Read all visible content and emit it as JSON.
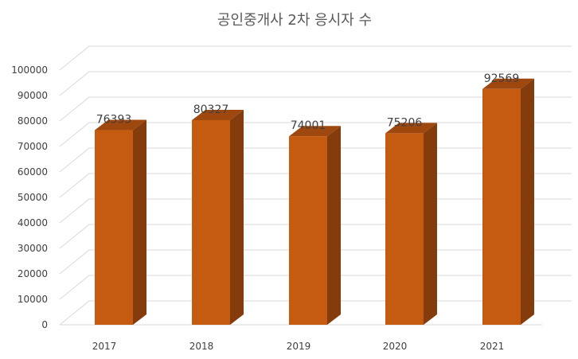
{
  "chart_data": {
    "type": "bar",
    "title": "공인중개사 2차 응시자 수",
    "categories": [
      "2017",
      "2018",
      "2019",
      "2020",
      "2021"
    ],
    "values": [
      76393,
      80327,
      74001,
      75206,
      92569
    ],
    "ylim": [
      0,
      100000
    ],
    "yticks": [
      0,
      10000,
      20000,
      30000,
      40000,
      50000,
      60000,
      70000,
      80000,
      90000,
      100000
    ],
    "xlabel": "",
    "ylabel": "",
    "grid": true,
    "legend": "none",
    "style": "3d-column",
    "colors": {
      "front": "#C55A11",
      "side": "#843C0C",
      "top": "#9E470E",
      "grid": "#D9D9D9",
      "text": "#404040",
      "title": "#595959"
    }
  }
}
